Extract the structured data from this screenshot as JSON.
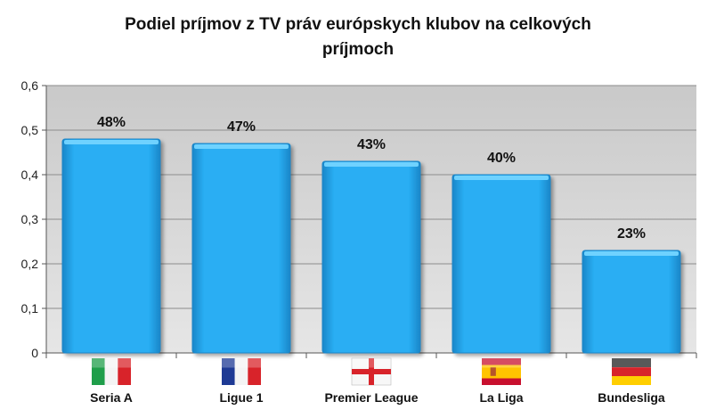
{
  "chart_data": {
    "type": "bar",
    "title_line1": "Podiel príjmov z TV práv európskych klubov na celkových",
    "title_line2": "príjmoch",
    "categories": [
      "Seria A",
      "Ligue 1",
      "Premier League",
      "La Liga",
      "Bundesliga"
    ],
    "values": [
      0.48,
      0.47,
      0.43,
      0.4,
      0.23
    ],
    "data_labels": [
      "48%",
      "47%",
      "43%",
      "40%",
      "23%"
    ],
    "flags": [
      "italy-flag-icon",
      "france-flag-icon",
      "england-flag-icon",
      "spain-flag-icon",
      "germany-flag-icon"
    ],
    "ylim": [
      0,
      0.6
    ],
    "yticks": [
      "0",
      "0,1",
      "0,2",
      "0,3",
      "0,4",
      "0,5",
      "0,6"
    ],
    "grid": true,
    "colors": {
      "bar": "#29aef3",
      "bar_top": "#6fd2ff",
      "bar_edge": "#1a86c8",
      "plot_bg": "#d9d9d9",
      "grid": "#8c8c8c"
    }
  }
}
